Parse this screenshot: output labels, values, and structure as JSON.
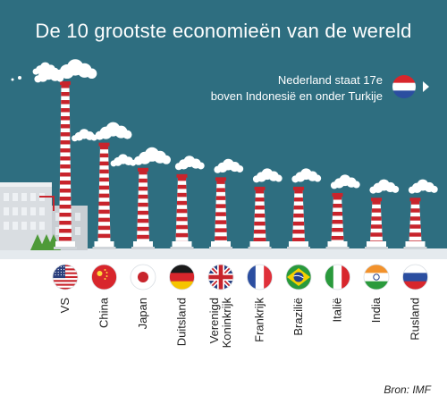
{
  "header": {
    "title": "De 10 grootste economieën van de wereld"
  },
  "note": {
    "line1": "Nederland staat 17e",
    "line2": "boven Indonesië en onder Turkije",
    "flag_icon": "netherlands-flag-icon",
    "arrow_icon": "chevron-right-icon"
  },
  "source": "Bron: IMF",
  "colors": {
    "sky": "#2e6e80",
    "ground": "#e5eaee",
    "chimney_red": "#c8242c",
    "chimney_white": "#ffffff",
    "factory": "#d9dde1",
    "tree": "#4e9a38"
  },
  "chart_data": {
    "type": "bar",
    "title": "De 10 grootste economieën van de wereld",
    "categories": [
      "VS",
      "China",
      "Japan",
      "Duitsland",
      "Verenigd Koninkrijk",
      "Frankrijk",
      "Brazilië",
      "Italië",
      "India",
      "Rusland"
    ],
    "rank": [
      1,
      2,
      3,
      4,
      5,
      6,
      7,
      8,
      9,
      10
    ],
    "relative_height": [
      1.0,
      0.61,
      0.45,
      0.41,
      0.39,
      0.33,
      0.33,
      0.29,
      0.26,
      0.26
    ],
    "flag_icons": [
      "usa-flag-icon",
      "china-flag-icon",
      "japan-flag-icon",
      "germany-flag-icon",
      "uk-flag-icon",
      "france-flag-icon",
      "brazil-flag-icon",
      "italy-flag-icon",
      "india-flag-icon",
      "russia-flag-icon"
    ],
    "xlabel": "",
    "ylabel": ""
  }
}
